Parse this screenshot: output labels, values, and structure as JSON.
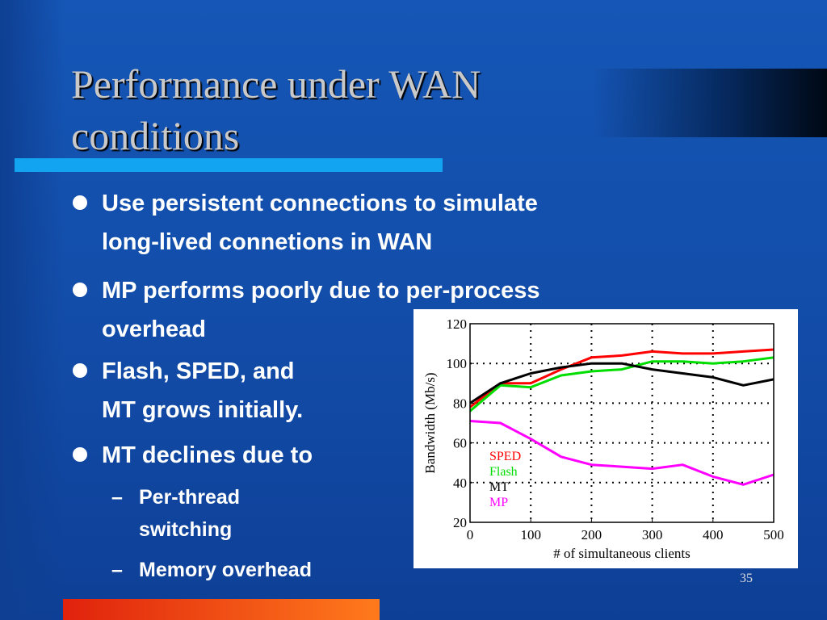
{
  "slide": {
    "title": "Performance under WAN conditions",
    "page_number": "35",
    "bullets": [
      {
        "lines": [
          "Use persistent connections to simulate",
          "long-lived connetions in WAN"
        ]
      },
      {
        "lines": [
          "MP performs poorly due to per-process",
          "overhead"
        ]
      },
      {
        "lines": [
          "Flash, SPED, and",
          "MT grows initially."
        ]
      },
      {
        "lines": [
          "MT declines due to"
        ]
      }
    ],
    "sub_bullets": [
      {
        "dash": "–",
        "lines": [
          "Per-thread",
          "switching"
        ]
      },
      {
        "dash": "–",
        "lines": [
          "Memory overhead"
        ]
      }
    ],
    "colors": {
      "title_bar": "#12a4f0",
      "bottom_bar_start": "#e0220d",
      "bottom_bar_end": "#ff7a1c"
    }
  },
  "chart_data": {
    "type": "line",
    "title": "",
    "xlabel": "# of simultaneous clients",
    "ylabel": "Bandwidth (Mb/s)",
    "xlim": [
      0,
      500
    ],
    "ylim": [
      20,
      120
    ],
    "xticks": [
      0,
      100,
      200,
      300,
      400,
      500
    ],
    "yticks": [
      20,
      40,
      60,
      80,
      100,
      120
    ],
    "grid": "dotted",
    "legend_position": "bottom-left",
    "series": [
      {
        "name": "SPED",
        "color": "#ff0000",
        "x": [
          0,
          50,
          100,
          150,
          200,
          250,
          300,
          350,
          400,
          450,
          500
        ],
        "y": [
          78,
          90,
          90,
          97,
          103,
          104,
          106,
          105,
          105,
          106,
          107
        ]
      },
      {
        "name": "Flash",
        "color": "#00dd00",
        "x": [
          0,
          50,
          100,
          150,
          200,
          250,
          300,
          350,
          400,
          450,
          500
        ],
        "y": [
          76,
          89,
          88,
          94,
          96,
          97,
          101,
          101,
          100,
          101,
          103
        ]
      },
      {
        "name": "MT",
        "color": "#000000",
        "x": [
          0,
          50,
          100,
          150,
          200,
          250,
          300,
          350,
          400,
          450,
          500
        ],
        "y": [
          80,
          90,
          95,
          98,
          100,
          100,
          97,
          95,
          93,
          89,
          92
        ]
      },
      {
        "name": "MP",
        "color": "#ff00ff",
        "x": [
          0,
          50,
          100,
          150,
          200,
          250,
          300,
          350,
          400,
          450,
          500
        ],
        "y": [
          71,
          70,
          62,
          53,
          49,
          48,
          47,
          49,
          43,
          39,
          44
        ]
      }
    ]
  }
}
